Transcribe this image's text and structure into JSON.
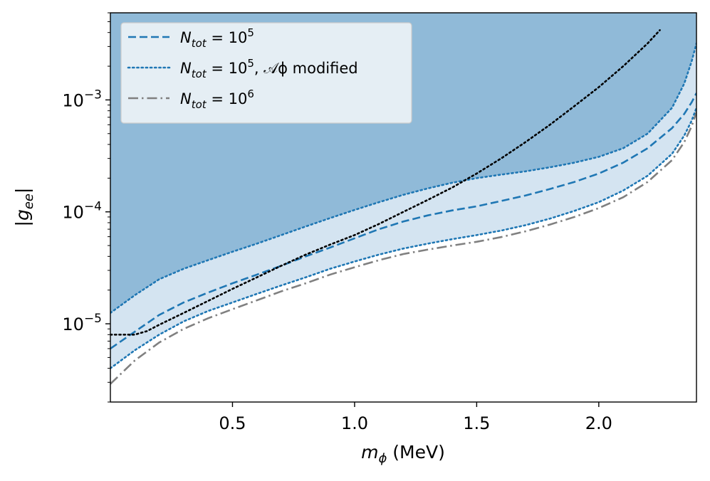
{
  "chart_data": {
    "type": "line",
    "title": "",
    "xlabel": "m_ϕ (MeV)",
    "ylabel": "|g_ee|",
    "xlim": [
      0.0,
      2.4
    ],
    "ylim": [
      2e-06,
      0.006
    ],
    "yscale": "log",
    "x_ticks": [
      0.5,
      1.0,
      1.5,
      2.0
    ],
    "x_tick_labels": [
      "0.5",
      "1.0",
      "1.5",
      "2.0"
    ],
    "y_ticks": [
      1e-05,
      0.0001,
      0.001
    ],
    "y_tick_labels": [
      {
        "base": "10",
        "exp": "−5"
      },
      {
        "base": "10",
        "exp": "−4"
      },
      {
        "base": "10",
        "exp": "−3"
      }
    ],
    "legend_position": "top-left",
    "colors": {
      "fill_dark": "#90bad8",
      "fill_light": "#d4e4f1",
      "blue": "#1f77b4",
      "gray": "#808080",
      "black": "#000000"
    },
    "series": [
      {
        "name": "N_tot = 10^5",
        "legend": {
          "main": "N",
          "sub": "tot",
          "eq": " = 10",
          "sup": "5",
          "tail": ""
        },
        "style": "dashed",
        "color": "#1f77b4",
        "x": [
          0.0,
          0.1,
          0.2,
          0.3,
          0.4,
          0.5,
          0.6,
          0.7,
          0.8,
          0.9,
          1.0,
          1.1,
          1.2,
          1.3,
          1.4,
          1.5,
          1.6,
          1.7,
          1.8,
          1.9,
          2.0,
          2.1,
          2.2,
          2.3,
          2.35,
          2.38,
          2.4
        ],
        "y": [
          6e-06,
          8.5e-06,
          1.2e-05,
          1.55e-05,
          1.9e-05,
          2.3e-05,
          2.75e-05,
          3.3e-05,
          4e-05,
          4.8e-05,
          5.8e-05,
          7e-05,
          8.2e-05,
          9.3e-05,
          0.000103,
          0.000112,
          0.000125,
          0.00014,
          0.00016,
          0.000185,
          0.00022,
          0.000275,
          0.00037,
          0.00056,
          0.00075,
          0.00095,
          0.00115
        ]
      },
      {
        "name": "N_tot = 10^5, A_phi modified",
        "legend": {
          "main": "N",
          "sub": "tot",
          "eq": " = 10",
          "sup": "5",
          "tail": ", 𝒜ϕ modified"
        },
        "style": "dotted",
        "color": "#1f77b4",
        "x": [
          0.0,
          0.1,
          0.2,
          0.3,
          0.4,
          0.5,
          0.6,
          0.7,
          0.8,
          0.9,
          1.0,
          1.1,
          1.2,
          1.3,
          1.4,
          1.5,
          1.6,
          1.7,
          1.8,
          1.9,
          2.0,
          2.1,
          2.2,
          2.3,
          2.35,
          2.38,
          2.4
        ],
        "y": [
          1.25e-05,
          1.8e-05,
          2.5e-05,
          3.1e-05,
          3.7e-05,
          4.4e-05,
          5.2e-05,
          6.2e-05,
          7.4e-05,
          8.8e-05,
          0.000104,
          0.000122,
          0.000142,
          0.000162,
          0.000182,
          0.0002,
          0.000215,
          0.00023,
          0.00025,
          0.000275,
          0.00031,
          0.00037,
          0.0005,
          0.00085,
          0.0014,
          0.0022,
          0.0032
        ]
      },
      {
        "name": "N_tot = 10^5, A_phi modified (lower)",
        "legend": null,
        "style": "dotted",
        "color": "#1f77b4",
        "x": [
          0.0,
          0.1,
          0.2,
          0.3,
          0.4,
          0.5,
          0.6,
          0.7,
          0.8,
          0.9,
          1.0,
          1.1,
          1.2,
          1.3,
          1.4,
          1.5,
          1.6,
          1.7,
          1.8,
          1.9,
          2.0,
          2.1,
          2.2,
          2.3,
          2.35,
          2.38,
          2.4
        ],
        "y": [
          4e-06,
          5.8e-06,
          8e-06,
          1.05e-05,
          1.3e-05,
          1.55e-05,
          1.85e-05,
          2.2e-05,
          2.6e-05,
          3.1e-05,
          3.6e-05,
          4.15e-05,
          4.7e-05,
          5.2e-05,
          5.7e-05,
          6.2e-05,
          6.8e-05,
          7.6e-05,
          8.7e-05,
          0.000102,
          0.000122,
          0.000155,
          0.00021,
          0.00033,
          0.00048,
          0.00065,
          0.00085
        ]
      },
      {
        "name": "N_tot = 10^6",
        "legend": {
          "main": "N",
          "sub": "tot",
          "eq": " = 10",
          "sup": "6",
          "tail": ""
        },
        "style": "dashdot",
        "color": "#808080",
        "x": [
          0.0,
          0.1,
          0.2,
          0.3,
          0.4,
          0.5,
          0.6,
          0.7,
          0.8,
          0.9,
          1.0,
          1.1,
          1.2,
          1.3,
          1.4,
          1.5,
          1.6,
          1.7,
          1.8,
          1.9,
          2.0,
          2.1,
          2.2,
          2.3,
          2.35,
          2.38,
          2.4
        ],
        "y": [
          2.9e-06,
          4.7e-06,
          6.8e-06,
          9e-06,
          1.12e-05,
          1.35e-05,
          1.62e-05,
          1.95e-05,
          2.3e-05,
          2.75e-05,
          3.2e-05,
          3.7e-05,
          4.2e-05,
          4.6e-05,
          5e-05,
          5.4e-05,
          5.95e-05,
          6.7e-05,
          7.7e-05,
          9e-05,
          0.000108,
          0.000135,
          0.000185,
          0.00029,
          0.00042,
          0.00058,
          0.00078
        ]
      },
      {
        "name": "dotted black reference curve",
        "legend": null,
        "style": "dotted",
        "color": "#000000",
        "x": [
          0.0,
          0.1,
          0.15,
          0.2,
          0.3,
          0.4,
          0.5,
          0.6,
          0.7,
          0.8,
          0.9,
          1.0,
          1.1,
          1.2,
          1.3,
          1.4,
          1.5,
          1.6,
          1.7,
          1.8,
          1.9,
          2.0,
          2.1,
          2.2,
          2.25
        ],
        "y": [
          8e-06,
          8e-06,
          8.6e-06,
          9.8e-06,
          1.25e-05,
          1.6e-05,
          2.05e-05,
          2.6e-05,
          3.3e-05,
          4.15e-05,
          5.1e-05,
          6.2e-05,
          7.8e-05,
          0.0001,
          0.000128,
          0.000165,
          0.00022,
          0.0003,
          0.00042,
          0.0006,
          0.00088,
          0.0013,
          0.002,
          0.0032,
          0.0042
        ]
      }
    ]
  }
}
